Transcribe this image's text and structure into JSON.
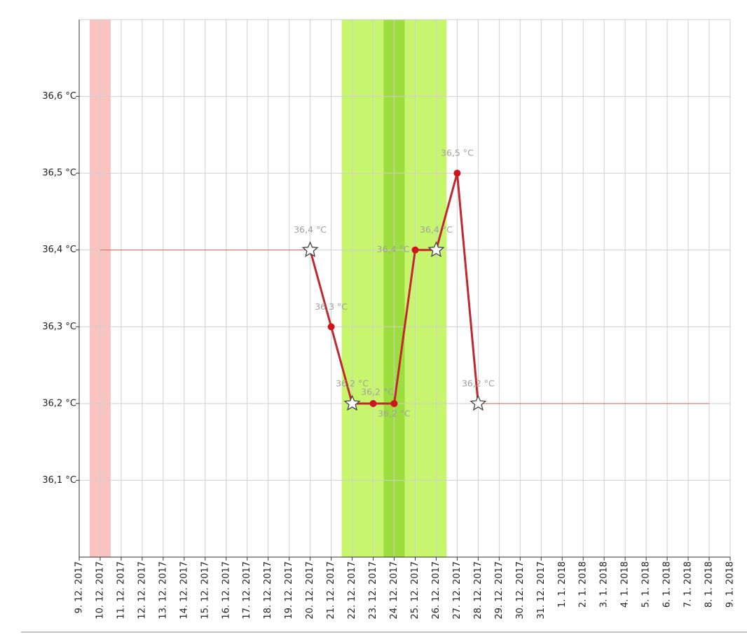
{
  "chart_data": {
    "type": "line",
    "categories": [
      "9. 12. 2017",
      "10. 12. 2017",
      "11. 12. 2017",
      "12. 12. 2017",
      "13. 12. 2017",
      "14. 12. 2017",
      "15. 12. 2017",
      "16. 12. 2017",
      "17. 12. 2017",
      "18. 12. 2017",
      "19. 12. 2017",
      "20. 12. 2017",
      "21. 12. 2017",
      "22. 12. 2017",
      "23. 12. 2017",
      "24. 12. 2017",
      "25. 12. 2017",
      "26. 12. 2017",
      "27. 12. 2017",
      "28. 12. 2017",
      "29. 12. 2017",
      "30. 12. 2017",
      "31. 12. 2017",
      "1. 1. 2018",
      "2. 1. 2018",
      "3. 1. 2018",
      "4. 1. 2018",
      "5. 1. 2018",
      "6. 1. 2018",
      "7. 1. 2018",
      "8. 1. 2018",
      "9. 1. 2018"
    ],
    "series": [
      {
        "color": "#c0282d",
        "width": 3,
        "values": [
          null,
          null,
          null,
          null,
          null,
          null,
          null,
          null,
          null,
          null,
          null,
          36.4,
          36.3,
          36.2,
          36.2,
          36.2,
          36.4,
          36.4,
          36.5,
          36.2,
          null,
          null,
          null,
          null,
          null,
          null,
          null,
          null,
          null,
          null,
          null,
          null
        ],
        "value_labels": [
          null,
          null,
          null,
          null,
          null,
          null,
          null,
          null,
          null,
          null,
          null,
          "36,4 °C",
          "36,3 °C",
          "36,2 °C",
          "36,2 °C",
          "36,2 °C",
          "36,4 °C",
          "36,4 °C",
          "36,5 °C",
          "36,2 °C",
          null,
          null,
          null,
          null,
          null,
          null,
          null,
          null,
          null,
          null,
          null,
          null
        ],
        "markers": [
          null,
          null,
          null,
          null,
          null,
          null,
          null,
          null,
          null,
          null,
          null,
          "star",
          "circle",
          "star",
          "circle",
          "circle",
          "circle",
          "star",
          "circle",
          "star",
          null,
          null,
          null,
          null,
          null,
          null,
          null,
          null,
          null,
          null,
          null,
          null
        ]
      },
      {
        "color": "#d9605f",
        "width": 1,
        "values": [
          null,
          36.4,
          36.4,
          36.4,
          36.4,
          36.4,
          36.4,
          36.4,
          36.4,
          36.4,
          36.4,
          36.4,
          null,
          null,
          null,
          null,
          null,
          null,
          null,
          36.2,
          36.2,
          36.2,
          36.2,
          36.2,
          36.2,
          36.2,
          36.2,
          36.2,
          36.2,
          36.2,
          36.2,
          null
        ]
      }
    ],
    "highlights": [
      {
        "from": "10. 12. 2017",
        "to": "10. 12. 2017",
        "color": "#f9c3c0"
      },
      {
        "from": "22. 12. 2017",
        "to": "26. 12. 2017",
        "color": "#c8f56e"
      },
      {
        "from": "24. 12. 2017",
        "to": "24. 12. 2017",
        "color": "#9ddd3e"
      }
    ],
    "ylim": [
      36.0,
      36.7
    ],
    "yticks": [
      {
        "value": 36.1,
        "label": "36,1 °C"
      },
      {
        "value": 36.2,
        "label": "36,2 °C"
      },
      {
        "value": 36.3,
        "label": "36,3 °C"
      },
      {
        "value": 36.4,
        "label": "36,4 °C"
      },
      {
        "value": 36.5,
        "label": "36,5 °C"
      },
      {
        "value": 36.6,
        "label": "36,6 °C"
      }
    ],
    "grid": true
  }
}
